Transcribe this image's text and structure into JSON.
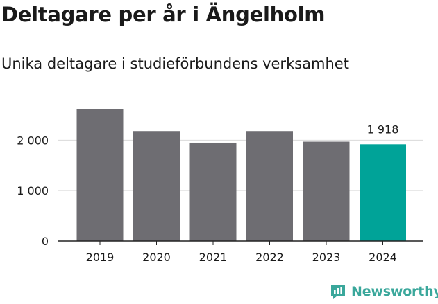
{
  "header": {
    "title": "Deltagare per år i Ängelholm",
    "subtitle": "Unika deltagare i studieförbundens verksamhet"
  },
  "brand": {
    "name": "Newsworthy",
    "icon": "newsworthy-logo-icon"
  },
  "colors": {
    "bar": "#6e6d72",
    "highlight": "#00a398",
    "grid": "#d9d9d9",
    "axis": "#222222",
    "text": "#1a1a1a",
    "brand": "#3aa79b"
  },
  "chart_data": {
    "type": "bar",
    "title": "Deltagare per år i Ängelholm",
    "subtitle": "Unika deltagare i studieförbundens verksamhet",
    "categories": [
      "2019",
      "2020",
      "2021",
      "2022",
      "2023",
      "2024"
    ],
    "values": [
      2610,
      2180,
      1950,
      2180,
      1970,
      1918
    ],
    "highlight_index": 5,
    "data_labels": [
      {
        "index": 5,
        "text": "1 918"
      }
    ],
    "y_ticks": [
      {
        "value": 0,
        "label": "0"
      },
      {
        "value": 1000,
        "label": "1 000"
      },
      {
        "value": 2000,
        "label": "2 000"
      }
    ],
    "ylim": [
      0,
      2650
    ],
    "grid": true,
    "legend": "none",
    "xlabel": "",
    "ylabel": ""
  }
}
